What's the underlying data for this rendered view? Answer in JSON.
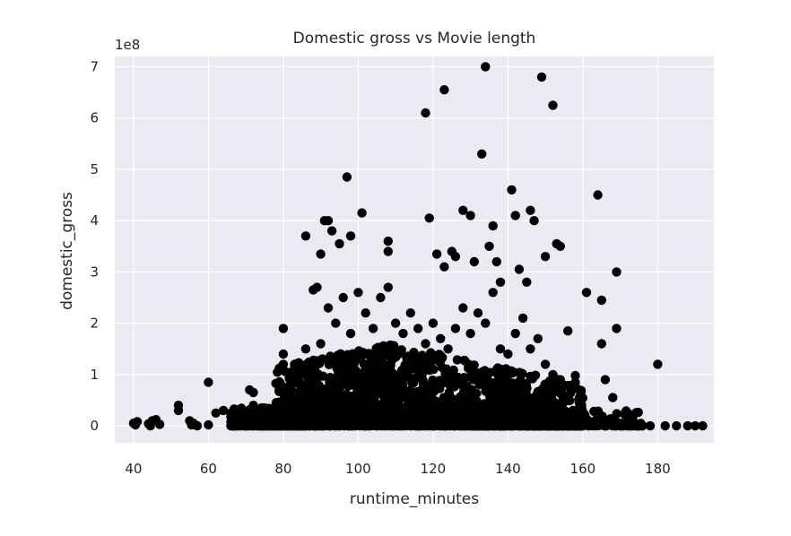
{
  "chart_data": {
    "type": "scatter",
    "title": "Domestic gross vs Movie length",
    "xlabel": "runtime_minutes",
    "ylabel": "domestic_gross",
    "y_offset_text": "1e8",
    "xlim": [
      35,
      195
    ],
    "ylim": [
      -0.33,
      7.2
    ],
    "y_scale_multiplier": 100000000,
    "x_ticks": [
      40,
      60,
      80,
      100,
      120,
      140,
      160,
      180
    ],
    "y_ticks": [
      0,
      1,
      2,
      3,
      4,
      5,
      6,
      7
    ],
    "grid": true,
    "marker_color": "#000000",
    "background_color": "#eaeaf2",
    "points": [
      [
        40,
        0.05
      ],
      [
        40.5,
        0.02
      ],
      [
        41,
        0.08
      ],
      [
        44,
        0.04
      ],
      [
        45,
        0.1
      ],
      [
        46,
        0.12
      ],
      [
        47,
        0.03
      ],
      [
        44.5,
        0.0
      ],
      [
        52,
        0.4
      ],
      [
        52,
        0.3
      ],
      [
        55,
        0.1
      ],
      [
        55.5,
        0.02
      ],
      [
        56,
        0.05
      ],
      [
        57,
        0.0
      ],
      [
        60,
        0.85
      ],
      [
        60,
        0.02
      ],
      [
        62,
        0.25
      ],
      [
        64,
        0.3
      ],
      [
        66,
        0.0
      ],
      [
        67,
        0.1
      ],
      [
        68,
        0.05
      ],
      [
        70,
        0.02
      ],
      [
        71,
        0.7
      ],
      [
        72,
        0.65
      ],
      [
        72,
        0.4
      ],
      [
        72,
        0.3
      ],
      [
        75,
        0.35
      ],
      [
        76,
        0.0
      ],
      [
        77,
        0.05
      ],
      [
        78,
        0.1
      ],
      [
        78,
        0.2
      ],
      [
        79,
        0.15
      ],
      [
        80,
        1.9
      ],
      [
        80,
        1.2
      ],
      [
        80,
        1.4
      ],
      [
        80,
        0.5
      ],
      [
        81,
        0.7
      ],
      [
        82,
        0.9
      ],
      [
        83,
        0.3
      ],
      [
        84,
        0.6
      ],
      [
        86,
        3.7
      ],
      [
        88,
        2.65
      ],
      [
        89,
        2.7
      ],
      [
        90,
        3.35
      ],
      [
        91,
        4.0
      ],
      [
        92,
        4.0
      ],
      [
        93,
        3.8
      ],
      [
        95,
        3.55
      ],
      [
        97,
        4.85
      ],
      [
        98,
        3.7
      ],
      [
        101,
        4.15
      ],
      [
        108,
        3.6
      ],
      [
        108,
        3.4
      ],
      [
        118,
        6.1
      ],
      [
        119,
        4.05
      ],
      [
        121,
        3.35
      ],
      [
        123,
        6.55
      ],
      [
        125,
        3.4
      ],
      [
        128,
        4.2
      ],
      [
        130,
        4.1
      ],
      [
        133,
        5.3
      ],
      [
        134,
        7.0
      ],
      [
        135,
        3.5
      ],
      [
        136,
        3.9
      ],
      [
        137,
        3.2
      ],
      [
        141,
        4.6
      ],
      [
        142,
        4.1
      ],
      [
        143,
        3.05
      ],
      [
        146,
        4.2
      ],
      [
        147,
        4.0
      ],
      [
        149,
        6.8
      ],
      [
        150,
        3.3
      ],
      [
        152,
        6.25
      ],
      [
        153,
        3.55
      ],
      [
        154,
        3.5
      ],
      [
        156,
        1.85
      ],
      [
        158,
        0.98
      ],
      [
        161,
        2.6
      ],
      [
        164,
        4.5
      ],
      [
        165,
        2.45
      ],
      [
        165,
        1.6
      ],
      [
        166,
        0.9
      ],
      [
        168,
        0.55
      ],
      [
        169,
        3.0
      ],
      [
        169,
        1.9
      ],
      [
        172,
        0.25
      ],
      [
        175,
        0.0
      ],
      [
        180,
        1.2
      ],
      [
        185,
        0.0
      ],
      [
        188,
        0.0
      ],
      [
        190,
        0.0
      ],
      [
        192,
        0.0
      ],
      [
        170,
        0.0
      ],
      [
        178,
        0.0
      ],
      [
        182,
        0.0
      ],
      [
        160,
        0.0
      ],
      [
        162,
        0.05
      ],
      [
        158,
        0.1
      ],
      [
        156,
        0.0
      ],
      [
        154,
        0.02
      ],
      [
        150,
        0.05
      ],
      [
        148,
        0.1
      ],
      [
        146,
        0.0
      ],
      [
        144,
        0.0
      ],
      [
        86,
        1.5
      ],
      [
        88,
        1.2
      ],
      [
        90,
        1.6
      ],
      [
        92,
        2.3
      ],
      [
        94,
        2.0
      ],
      [
        96,
        2.5
      ],
      [
        98,
        1.8
      ],
      [
        100,
        2.6
      ],
      [
        102,
        2.2
      ],
      [
        104,
        1.9
      ],
      [
        106,
        2.5
      ],
      [
        108,
        2.7
      ],
      [
        110,
        2.0
      ],
      [
        112,
        1.8
      ],
      [
        114,
        2.2
      ],
      [
        116,
        1.9
      ],
      [
        118,
        1.6
      ],
      [
        120,
        2.0
      ],
      [
        122,
        1.7
      ],
      [
        124,
        1.5
      ],
      [
        126,
        1.9
      ],
      [
        128,
        2.3
      ],
      [
        130,
        1.8
      ],
      [
        132,
        2.2
      ],
      [
        134,
        2.0
      ],
      [
        136,
        2.6
      ],
      [
        138,
        1.5
      ],
      [
        140,
        1.4
      ],
      [
        142,
        1.8
      ],
      [
        144,
        2.1
      ],
      [
        146,
        1.5
      ],
      [
        148,
        1.7
      ],
      [
        150,
        1.2
      ],
      [
        152,
        1.0
      ],
      [
        154,
        0.9
      ],
      [
        145,
        2.8
      ],
      [
        138,
        2.8
      ],
      [
        131,
        3.2
      ],
      [
        126,
        3.3
      ],
      [
        123,
        3.1
      ]
    ]
  }
}
